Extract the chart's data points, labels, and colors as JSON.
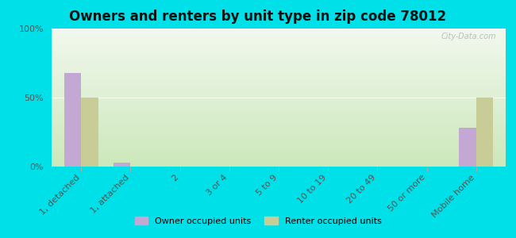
{
  "title": "Owners and renters by unit type in zip code 78012",
  "categories": [
    "1, detached",
    "1, attached",
    "2",
    "3 or 4",
    "5 to 9",
    "10 to 19",
    "20 to 49",
    "50 or more",
    "Mobile home"
  ],
  "owner_values": [
    68,
    3,
    0,
    0,
    0,
    0,
    0,
    0,
    28
  ],
  "renter_values": [
    50,
    0,
    0,
    0,
    0,
    0,
    0,
    0,
    50
  ],
  "owner_color": "#c4a8d4",
  "renter_color": "#c8cc96",
  "background_outer": "#00e0e8",
  "grad_top": "#f2f8ee",
  "grad_bottom": "#cce8bb",
  "ylim": [
    0,
    100
  ],
  "yticks": [
    0,
    50,
    100
  ],
  "ytick_labels": [
    "0%",
    "50%",
    "100%"
  ],
  "bar_width": 0.35,
  "title_fontsize": 12,
  "tick_fontsize": 8,
  "legend_owner": "Owner occupied units",
  "legend_renter": "Renter occupied units",
  "watermark": "City-Data.com"
}
